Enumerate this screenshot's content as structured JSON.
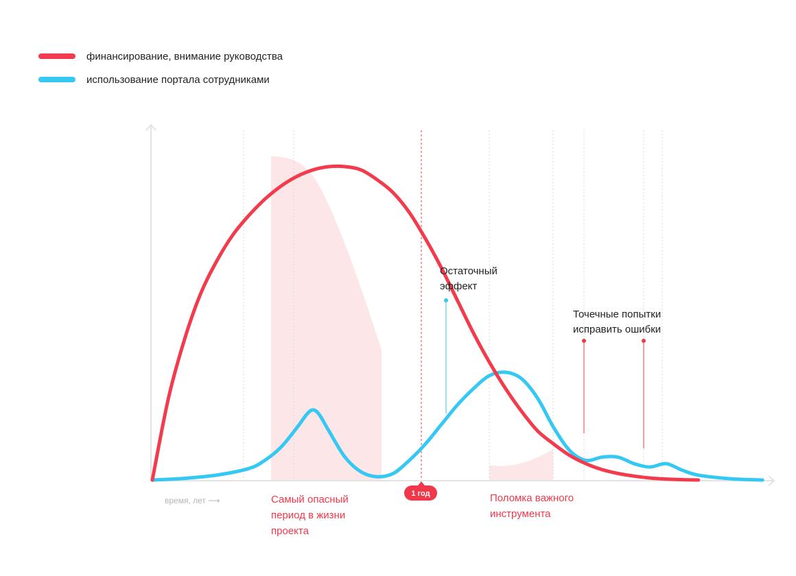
{
  "legend": {
    "items": [
      {
        "label": "финансирование, внимание руководства",
        "color": "#f23b4c"
      },
      {
        "label": "использование портала сотрудниками",
        "color": "#35c8f2"
      }
    ]
  },
  "annotations": {
    "residual_effect": [
      "Остаточный",
      "эффект"
    ],
    "spot_fixes": [
      "Точечные попытки",
      "исправить ошибки"
    ],
    "danger_period": [
      "Самый опасный",
      "период в жизни",
      "проекта"
    ],
    "tool_breakdown": [
      "Поломка важного",
      "инструмента"
    ],
    "year_badge": "1 год",
    "x_axis_label": "время, лет ⟶"
  },
  "chart_data": {
    "type": "line",
    "xlabel": "время, лет",
    "series": [
      {
        "name": "финансирование, внимание руководства",
        "color": "#f23b4c",
        "points": [
          [
            0,
            0
          ],
          [
            0.05,
            0.25
          ],
          [
            0.1,
            0.43
          ],
          [
            0.15,
            0.57
          ],
          [
            0.2,
            0.67
          ],
          [
            0.25,
            0.75
          ],
          [
            0.3,
            0.81
          ],
          [
            0.35,
            0.86
          ],
          [
            0.4,
            0.9
          ],
          [
            0.45,
            0.93
          ],
          [
            0.5,
            0.95
          ],
          [
            0.55,
            0.96
          ],
          [
            0.6,
            0.96
          ],
          [
            0.65,
            0.95
          ],
          [
            0.7,
            0.92
          ],
          [
            0.75,
            0.88
          ],
          [
            0.8,
            0.82
          ],
          [
            0.85,
            0.74
          ],
          [
            0.9,
            0.65
          ],
          [
            0.95,
            0.55
          ],
          [
            1.0,
            0.45
          ],
          [
            1.05,
            0.36
          ],
          [
            1.1,
            0.28
          ],
          [
            1.15,
            0.21
          ],
          [
            1.2,
            0.15
          ],
          [
            1.25,
            0.11
          ],
          [
            1.3,
            0.075
          ],
          [
            1.35,
            0.05
          ],
          [
            1.4,
            0.032
          ],
          [
            1.45,
            0.02
          ],
          [
            1.5,
            0.012
          ],
          [
            1.55,
            0.006
          ],
          [
            1.6,
            0.003
          ],
          [
            1.65,
            0.001
          ],
          [
            1.7,
            0
          ]
        ]
      },
      {
        "name": "использование портала сотрудниками",
        "color": "#35c8f2",
        "points": [
          [
            0,
            0
          ],
          [
            0.1,
            0.005
          ],
          [
            0.2,
            0.015
          ],
          [
            0.3,
            0.035
          ],
          [
            0.35,
            0.06
          ],
          [
            0.4,
            0.1
          ],
          [
            0.45,
            0.16
          ],
          [
            0.48,
            0.2
          ],
          [
            0.5,
            0.215
          ],
          [
            0.52,
            0.2
          ],
          [
            0.55,
            0.15
          ],
          [
            0.6,
            0.07
          ],
          [
            0.65,
            0.025
          ],
          [
            0.7,
            0.01
          ],
          [
            0.75,
            0.02
          ],
          [
            0.8,
            0.06
          ],
          [
            0.85,
            0.11
          ],
          [
            0.9,
            0.17
          ],
          [
            0.95,
            0.23
          ],
          [
            1.0,
            0.28
          ],
          [
            1.05,
            0.32
          ],
          [
            1.1,
            0.33
          ],
          [
            1.15,
            0.31
          ],
          [
            1.2,
            0.25
          ],
          [
            1.25,
            0.16
          ],
          [
            1.3,
            0.09
          ],
          [
            1.35,
            0.06
          ],
          [
            1.4,
            0.07
          ],
          [
            1.45,
            0.07
          ],
          [
            1.5,
            0.05
          ],
          [
            1.55,
            0.04
          ],
          [
            1.6,
            0.05
          ],
          [
            1.65,
            0.03
          ],
          [
            1.7,
            0.015
          ],
          [
            1.8,
            0.004
          ],
          [
            1.9,
            0
          ]
        ]
      }
    ],
    "markers": [
      {
        "label": "1 год",
        "x": 0.9
      }
    ]
  }
}
